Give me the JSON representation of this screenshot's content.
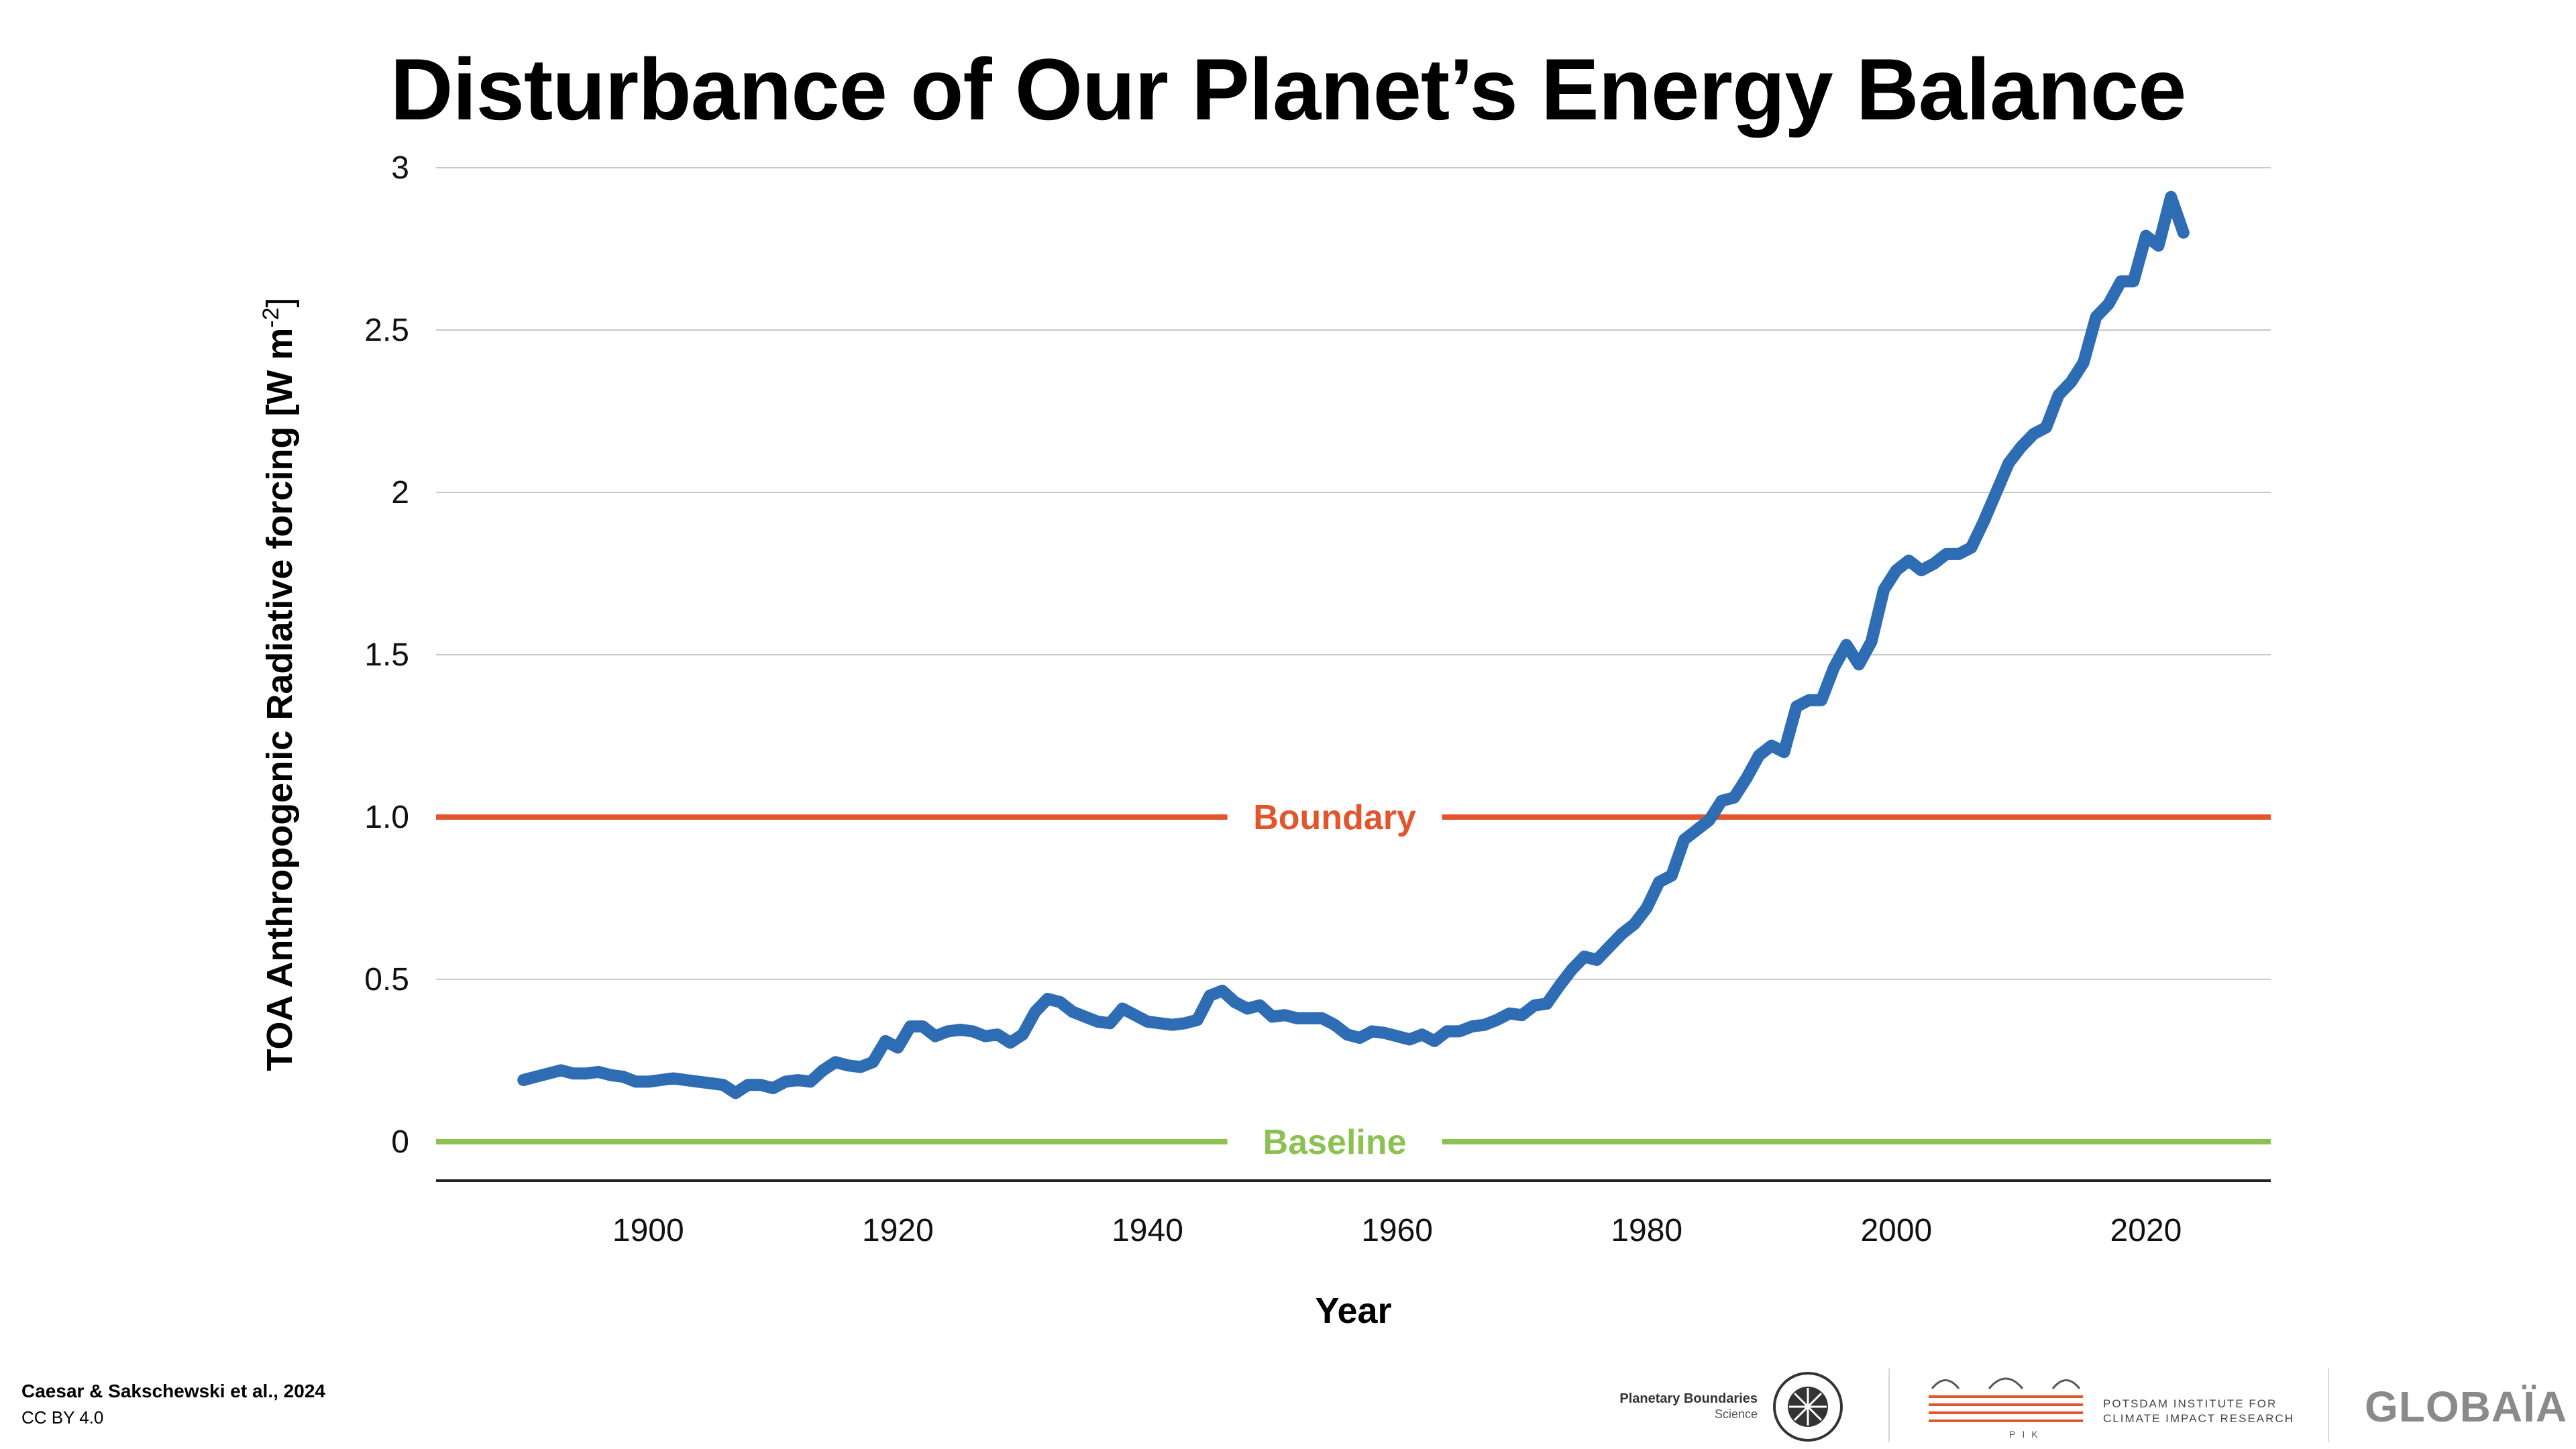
{
  "page": {
    "title": "Disturbance of Our Planet’s Energy Balance",
    "credit_line1": "Caesar & Sakschewski et al., 2024",
    "credit_line2": "CC BY 4.0",
    "logos": {
      "pbs_name": "Planetary Boundaries",
      "pbs_sub": "Science",
      "pik_line1": "POTSDAM INSTITUTE FOR",
      "pik_line2": "CLIMATE IMPACT RESEARCH",
      "pik_abbr": "PIK",
      "globaia": "GLOBAÏA"
    }
  },
  "chart_data": {
    "type": "line",
    "title": "Disturbance of Our Planet’s Energy Balance",
    "xlabel": "Year",
    "ylabel": "TOA Anthropogenic Radiative forcing [W m",
    "ylabel_sup": "-2",
    "ylabel_close": "]",
    "xlim": [
      1883,
      2030
    ],
    "ylim": [
      -0.12,
      3.0
    ],
    "x_ticks": [
      1900,
      1920,
      1940,
      1960,
      1980,
      2000,
      2020
    ],
    "y_ticks": [
      {
        "value": 0,
        "label": "0"
      },
      {
        "value": 0.5,
        "label": "0.5"
      },
      {
        "value": 1.0,
        "label": "1.0"
      },
      {
        "value": 1.5,
        "label": "1.5"
      },
      {
        "value": 2,
        "label": "2"
      },
      {
        "value": 2.5,
        "label": "2.5"
      },
      {
        "value": 3,
        "label": "3"
      }
    ],
    "grid": true,
    "reference_lines": [
      {
        "name": "Boundary",
        "value": 1.0,
        "color": "#e2552d",
        "label_x": 1955
      },
      {
        "name": "Baseline",
        "value": 0.0,
        "color": "#8cc152",
        "label_x": 1955
      }
    ],
    "series": [
      {
        "color": "#2e6db4",
        "x": [
          1890,
          1891,
          1892,
          1893,
          1894,
          1895,
          1896,
          1897,
          1898,
          1899,
          1900,
          1901,
          1902,
          1903,
          1904,
          1905,
          1906,
          1907,
          1908,
          1909,
          1910,
          1911,
          1912,
          1913,
          1914,
          1915,
          1916,
          1917,
          1918,
          1919,
          1920,
          1921,
          1922,
          1923,
          1924,
          1925,
          1926,
          1927,
          1928,
          1929,
          1930,
          1931,
          1932,
          1933,
          1934,
          1935,
          1936,
          1937,
          1938,
          1939,
          1940,
          1941,
          1942,
          1943,
          1944,
          1945,
          1946,
          1947,
          1948,
          1949,
          1950,
          1951,
          1952,
          1953,
          1954,
          1955,
          1956,
          1957,
          1958,
          1959,
          1960,
          1961,
          1962,
          1963,
          1964,
          1965,
          1966,
          1967,
          1968,
          1969,
          1970,
          1971,
          1972,
          1973,
          1974,
          1975,
          1976,
          1977,
          1978,
          1979,
          1980,
          1981,
          1982,
          1983,
          1984,
          1985,
          1986,
          1987,
          1988,
          1989,
          1990,
          1991,
          1992,
          1993,
          1994,
          1995,
          1996,
          1997,
          1998,
          1999,
          2000,
          2001,
          2002,
          2003,
          2004,
          2005,
          2006,
          2007,
          2008,
          2009,
          2010,
          2011,
          2012,
          2013,
          2014,
          2015,
          2016,
          2017,
          2018,
          2019,
          2020,
          2021,
          2022,
          2023
        ],
        "y": [
          0.19,
          0.2,
          0.21,
          0.22,
          0.21,
          0.21,
          0.215,
          0.205,
          0.2,
          0.185,
          0.185,
          0.19,
          0.195,
          0.19,
          0.185,
          0.18,
          0.175,
          0.15,
          0.175,
          0.175,
          0.165,
          0.185,
          0.19,
          0.185,
          0.22,
          0.245,
          0.235,
          0.23,
          0.245,
          0.31,
          0.29,
          0.355,
          0.355,
          0.325,
          0.34,
          0.345,
          0.34,
          0.325,
          0.33,
          0.305,
          0.33,
          0.4,
          0.44,
          0.43,
          0.4,
          0.385,
          0.37,
          0.365,
          0.41,
          0.39,
          0.37,
          0.365,
          0.36,
          0.365,
          0.375,
          0.45,
          0.465,
          0.43,
          0.41,
          0.42,
          0.385,
          0.39,
          0.38,
          0.38,
          0.38,
          0.36,
          0.33,
          0.32,
          0.34,
          0.335,
          0.325,
          0.315,
          0.33,
          0.31,
          0.34,
          0.34,
          0.355,
          0.36,
          0.375,
          0.395,
          0.39,
          0.42,
          0.425,
          0.48,
          0.53,
          0.57,
          0.56,
          0.6,
          0.64,
          0.67,
          0.72,
          0.8,
          0.82,
          0.93,
          0.96,
          0.99,
          1.05,
          1.06,
          1.12,
          1.19,
          1.22,
          1.2,
          1.34,
          1.36,
          1.36,
          1.46,
          1.53,
          1.47,
          1.54,
          1.7,
          1.76,
          1.79,
          1.76,
          1.78,
          1.81,
          1.81,
          1.83,
          1.91,
          2.0,
          2.09,
          2.14,
          2.18,
          2.2,
          2.3,
          2.34,
          2.4,
          2.54,
          2.58,
          2.65,
          2.65,
          2.79,
          2.76,
          2.91,
          2.8
        ]
      }
    ]
  }
}
